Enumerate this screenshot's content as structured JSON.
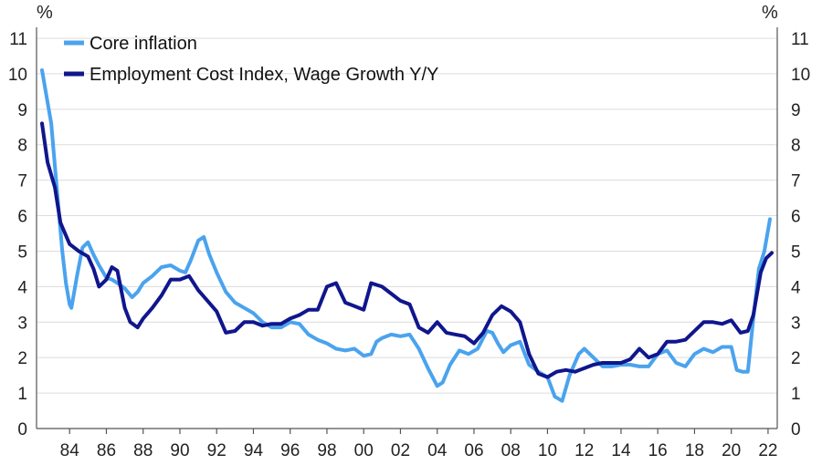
{
  "chart_data": {
    "type": "line",
    "y_unit_left": "%",
    "y_unit_right": "%",
    "ylim": [
      0,
      11
    ],
    "yticks": [
      "0",
      "1",
      "2",
      "3",
      "4",
      "5",
      "6",
      "7",
      "8",
      "9",
      "10",
      "11"
    ],
    "xlim": [
      1982.2,
      2022.5
    ],
    "xticks": [
      {
        "value": 1984,
        "label": "84"
      },
      {
        "value": 1986,
        "label": "86"
      },
      {
        "value": 1988,
        "label": "88"
      },
      {
        "value": 1990,
        "label": "90"
      },
      {
        "value": 1992,
        "label": "92"
      },
      {
        "value": 1994,
        "label": "94"
      },
      {
        "value": 1996,
        "label": "96"
      },
      {
        "value": 1998,
        "label": "98"
      },
      {
        "value": 2000,
        "label": "00"
      },
      {
        "value": 2002,
        "label": "02"
      },
      {
        "value": 2004,
        "label": "04"
      },
      {
        "value": 2006,
        "label": "06"
      },
      {
        "value": 2008,
        "label": "08"
      },
      {
        "value": 2010,
        "label": "10"
      },
      {
        "value": 2012,
        "label": "12"
      },
      {
        "value": 2014,
        "label": "14"
      },
      {
        "value": 2016,
        "label": "16"
      },
      {
        "value": 2018,
        "label": "18"
      },
      {
        "value": 2020,
        "label": "20"
      },
      {
        "value": 2022,
        "label": "22"
      }
    ],
    "grid": true,
    "legend_position": "top-left",
    "series": [
      {
        "name": "Core inflation",
        "color": "#4aa3ee",
        "points": [
          [
            1982.5,
            10.1
          ],
          [
            1983.0,
            8.6
          ],
          [
            1983.3,
            6.8
          ],
          [
            1983.6,
            5.0
          ],
          [
            1983.8,
            4.1
          ],
          [
            1984.0,
            3.5
          ],
          [
            1984.1,
            3.4
          ],
          [
            1984.4,
            4.3
          ],
          [
            1984.7,
            5.1
          ],
          [
            1985.0,
            5.25
          ],
          [
            1985.3,
            4.9
          ],
          [
            1985.6,
            4.6
          ],
          [
            1986.0,
            4.25
          ],
          [
            1986.3,
            4.2
          ],
          [
            1986.6,
            4.1
          ],
          [
            1987.0,
            3.95
          ],
          [
            1987.4,
            3.7
          ],
          [
            1987.7,
            3.85
          ],
          [
            1988.0,
            4.1
          ],
          [
            1988.5,
            4.3
          ],
          [
            1989.0,
            4.55
          ],
          [
            1989.5,
            4.6
          ],
          [
            1990.0,
            4.45
          ],
          [
            1990.3,
            4.4
          ],
          [
            1990.6,
            4.75
          ],
          [
            1991.0,
            5.3
          ],
          [
            1991.3,
            5.4
          ],
          [
            1991.6,
            4.9
          ],
          [
            1992.0,
            4.4
          ],
          [
            1992.5,
            3.85
          ],
          [
            1993.0,
            3.55
          ],
          [
            1993.5,
            3.4
          ],
          [
            1994.0,
            3.25
          ],
          [
            1994.5,
            3.0
          ],
          [
            1995.0,
            2.85
          ],
          [
            1995.5,
            2.85
          ],
          [
            1996.0,
            3.0
          ],
          [
            1996.5,
            2.95
          ],
          [
            1997.0,
            2.65
          ],
          [
            1997.5,
            2.5
          ],
          [
            1998.0,
            2.4
          ],
          [
            1998.5,
            2.25
          ],
          [
            1999.0,
            2.2
          ],
          [
            1999.5,
            2.25
          ],
          [
            2000.0,
            2.05
          ],
          [
            2000.4,
            2.1
          ],
          [
            2000.7,
            2.45
          ],
          [
            2001.0,
            2.55
          ],
          [
            2001.5,
            2.65
          ],
          [
            2002.0,
            2.6
          ],
          [
            2002.5,
            2.65
          ],
          [
            2003.0,
            2.25
          ],
          [
            2003.5,
            1.7
          ],
          [
            2004.0,
            1.2
          ],
          [
            2004.3,
            1.3
          ],
          [
            2004.7,
            1.8
          ],
          [
            2005.2,
            2.2
          ],
          [
            2005.7,
            2.1
          ],
          [
            2006.2,
            2.25
          ],
          [
            2006.7,
            2.75
          ],
          [
            2007.0,
            2.7
          ],
          [
            2007.3,
            2.4
          ],
          [
            2007.6,
            2.15
          ],
          [
            2008.0,
            2.35
          ],
          [
            2008.5,
            2.45
          ],
          [
            2009.0,
            1.8
          ],
          [
            2009.5,
            1.6
          ],
          [
            2010.0,
            1.45
          ],
          [
            2010.4,
            0.9
          ],
          [
            2010.8,
            0.78
          ],
          [
            2011.2,
            1.5
          ],
          [
            2011.7,
            2.1
          ],
          [
            2012.0,
            2.25
          ],
          [
            2012.5,
            2.0
          ],
          [
            2013.0,
            1.75
          ],
          [
            2013.5,
            1.75
          ],
          [
            2014.0,
            1.8
          ],
          [
            2014.5,
            1.8
          ],
          [
            2015.0,
            1.75
          ],
          [
            2015.5,
            1.75
          ],
          [
            2016.0,
            2.1
          ],
          [
            2016.5,
            2.2
          ],
          [
            2017.0,
            1.85
          ],
          [
            2017.5,
            1.75
          ],
          [
            2018.0,
            2.1
          ],
          [
            2018.5,
            2.25
          ],
          [
            2019.0,
            2.15
          ],
          [
            2019.5,
            2.3
          ],
          [
            2020.0,
            2.3
          ],
          [
            2020.3,
            1.65
          ],
          [
            2020.6,
            1.6
          ],
          [
            2020.9,
            1.6
          ],
          [
            2021.2,
            3.1
          ],
          [
            2021.5,
            4.5
          ],
          [
            2021.8,
            5.0
          ],
          [
            2022.1,
            5.9
          ]
        ]
      },
      {
        "name": "Employment Cost Index, Wage Growth Y/Y",
        "color": "#10168c",
        "points": [
          [
            1982.5,
            8.6
          ],
          [
            1982.8,
            7.5
          ],
          [
            1983.2,
            6.8
          ],
          [
            1983.5,
            5.8
          ],
          [
            1984.0,
            5.2
          ],
          [
            1984.5,
            5.0
          ],
          [
            1985.0,
            4.85
          ],
          [
            1985.3,
            4.5
          ],
          [
            1985.6,
            4.0
          ],
          [
            1986.0,
            4.2
          ],
          [
            1986.3,
            4.55
          ],
          [
            1986.6,
            4.45
          ],
          [
            1987.0,
            3.4
          ],
          [
            1987.3,
            3.0
          ],
          [
            1987.7,
            2.85
          ],
          [
            1988.0,
            3.1
          ],
          [
            1988.5,
            3.4
          ],
          [
            1989.0,
            3.75
          ],
          [
            1989.5,
            4.2
          ],
          [
            1990.0,
            4.2
          ],
          [
            1990.5,
            4.3
          ],
          [
            1991.0,
            3.9
          ],
          [
            1991.5,
            3.6
          ],
          [
            1992.0,
            3.3
          ],
          [
            1992.5,
            2.7
          ],
          [
            1993.0,
            2.75
          ],
          [
            1993.5,
            3.0
          ],
          [
            1994.0,
            3.0
          ],
          [
            1994.5,
            2.9
          ],
          [
            1995.0,
            2.95
          ],
          [
            1995.5,
            2.95
          ],
          [
            1996.0,
            3.1
          ],
          [
            1996.5,
            3.2
          ],
          [
            1997.0,
            3.35
          ],
          [
            1997.5,
            3.35
          ],
          [
            1998.0,
            4.0
          ],
          [
            1998.5,
            4.1
          ],
          [
            1999.0,
            3.55
          ],
          [
            1999.5,
            3.45
          ],
          [
            2000.0,
            3.35
          ],
          [
            2000.4,
            4.1
          ],
          [
            2001.0,
            4.0
          ],
          [
            2001.5,
            3.8
          ],
          [
            2002.0,
            3.6
          ],
          [
            2002.5,
            3.5
          ],
          [
            2003.0,
            2.85
          ],
          [
            2003.5,
            2.7
          ],
          [
            2004.0,
            3.0
          ],
          [
            2004.5,
            2.7
          ],
          [
            2005.0,
            2.65
          ],
          [
            2005.5,
            2.6
          ],
          [
            2006.0,
            2.4
          ],
          [
            2006.5,
            2.7
          ],
          [
            2007.0,
            3.2
          ],
          [
            2007.5,
            3.45
          ],
          [
            2008.0,
            3.3
          ],
          [
            2008.5,
            3.0
          ],
          [
            2009.0,
            2.1
          ],
          [
            2009.5,
            1.55
          ],
          [
            2010.0,
            1.45
          ],
          [
            2010.5,
            1.6
          ],
          [
            2011.0,
            1.65
          ],
          [
            2011.5,
            1.6
          ],
          [
            2012.0,
            1.7
          ],
          [
            2012.5,
            1.8
          ],
          [
            2013.0,
            1.85
          ],
          [
            2013.5,
            1.85
          ],
          [
            2014.0,
            1.85
          ],
          [
            2014.5,
            1.95
          ],
          [
            2015.0,
            2.25
          ],
          [
            2015.5,
            2.0
          ],
          [
            2016.0,
            2.1
          ],
          [
            2016.5,
            2.45
          ],
          [
            2017.0,
            2.45
          ],
          [
            2017.5,
            2.5
          ],
          [
            2018.0,
            2.75
          ],
          [
            2018.5,
            3.0
          ],
          [
            2019.0,
            3.0
          ],
          [
            2019.5,
            2.95
          ],
          [
            2020.0,
            3.05
          ],
          [
            2020.5,
            2.7
          ],
          [
            2020.9,
            2.75
          ],
          [
            2021.2,
            3.2
          ],
          [
            2021.6,
            4.4
          ],
          [
            2021.9,
            4.8
          ],
          [
            2022.2,
            4.95
          ]
        ]
      }
    ]
  }
}
